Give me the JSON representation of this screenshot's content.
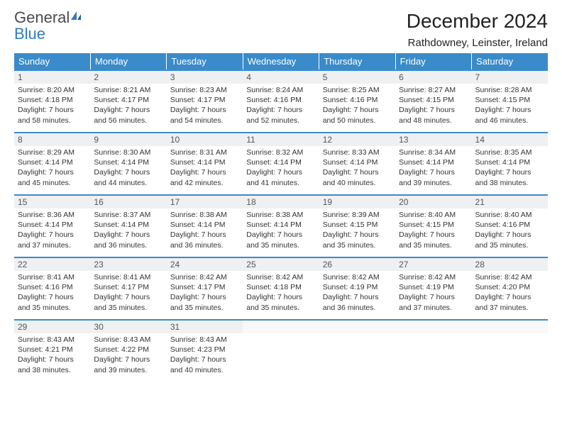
{
  "brand": {
    "general": "General",
    "blue": "Blue"
  },
  "header": {
    "title": "December 2024",
    "location": "Rathdowney, Leinster, Ireland"
  },
  "colors": {
    "header_bg": "#3a8bc9",
    "header_text": "#ffffff",
    "daynum_bg": "#eef0f2",
    "row_border": "#3a8bc9",
    "text": "#333333",
    "logo_blue": "#2f7bbf"
  },
  "weekdays": [
    "Sunday",
    "Monday",
    "Tuesday",
    "Wednesday",
    "Thursday",
    "Friday",
    "Saturday"
  ],
  "weeks": [
    [
      {
        "d": "1",
        "sunrise": "Sunrise: 8:20 AM",
        "sunset": "Sunset: 4:18 PM",
        "dayl": "Daylight: 7 hours and 58 minutes."
      },
      {
        "d": "2",
        "sunrise": "Sunrise: 8:21 AM",
        "sunset": "Sunset: 4:17 PM",
        "dayl": "Daylight: 7 hours and 56 minutes."
      },
      {
        "d": "3",
        "sunrise": "Sunrise: 8:23 AM",
        "sunset": "Sunset: 4:17 PM",
        "dayl": "Daylight: 7 hours and 54 minutes."
      },
      {
        "d": "4",
        "sunrise": "Sunrise: 8:24 AM",
        "sunset": "Sunset: 4:16 PM",
        "dayl": "Daylight: 7 hours and 52 minutes."
      },
      {
        "d": "5",
        "sunrise": "Sunrise: 8:25 AM",
        "sunset": "Sunset: 4:16 PM",
        "dayl": "Daylight: 7 hours and 50 minutes."
      },
      {
        "d": "6",
        "sunrise": "Sunrise: 8:27 AM",
        "sunset": "Sunset: 4:15 PM",
        "dayl": "Daylight: 7 hours and 48 minutes."
      },
      {
        "d": "7",
        "sunrise": "Sunrise: 8:28 AM",
        "sunset": "Sunset: 4:15 PM",
        "dayl": "Daylight: 7 hours and 46 minutes."
      }
    ],
    [
      {
        "d": "8",
        "sunrise": "Sunrise: 8:29 AM",
        "sunset": "Sunset: 4:14 PM",
        "dayl": "Daylight: 7 hours and 45 minutes."
      },
      {
        "d": "9",
        "sunrise": "Sunrise: 8:30 AM",
        "sunset": "Sunset: 4:14 PM",
        "dayl": "Daylight: 7 hours and 44 minutes."
      },
      {
        "d": "10",
        "sunrise": "Sunrise: 8:31 AM",
        "sunset": "Sunset: 4:14 PM",
        "dayl": "Daylight: 7 hours and 42 minutes."
      },
      {
        "d": "11",
        "sunrise": "Sunrise: 8:32 AM",
        "sunset": "Sunset: 4:14 PM",
        "dayl": "Daylight: 7 hours and 41 minutes."
      },
      {
        "d": "12",
        "sunrise": "Sunrise: 8:33 AM",
        "sunset": "Sunset: 4:14 PM",
        "dayl": "Daylight: 7 hours and 40 minutes."
      },
      {
        "d": "13",
        "sunrise": "Sunrise: 8:34 AM",
        "sunset": "Sunset: 4:14 PM",
        "dayl": "Daylight: 7 hours and 39 minutes."
      },
      {
        "d": "14",
        "sunrise": "Sunrise: 8:35 AM",
        "sunset": "Sunset: 4:14 PM",
        "dayl": "Daylight: 7 hours and 38 minutes."
      }
    ],
    [
      {
        "d": "15",
        "sunrise": "Sunrise: 8:36 AM",
        "sunset": "Sunset: 4:14 PM",
        "dayl": "Daylight: 7 hours and 37 minutes."
      },
      {
        "d": "16",
        "sunrise": "Sunrise: 8:37 AM",
        "sunset": "Sunset: 4:14 PM",
        "dayl": "Daylight: 7 hours and 36 minutes."
      },
      {
        "d": "17",
        "sunrise": "Sunrise: 8:38 AM",
        "sunset": "Sunset: 4:14 PM",
        "dayl": "Daylight: 7 hours and 36 minutes."
      },
      {
        "d": "18",
        "sunrise": "Sunrise: 8:38 AM",
        "sunset": "Sunset: 4:14 PM",
        "dayl": "Daylight: 7 hours and 35 minutes."
      },
      {
        "d": "19",
        "sunrise": "Sunrise: 8:39 AM",
        "sunset": "Sunset: 4:15 PM",
        "dayl": "Daylight: 7 hours and 35 minutes."
      },
      {
        "d": "20",
        "sunrise": "Sunrise: 8:40 AM",
        "sunset": "Sunset: 4:15 PM",
        "dayl": "Daylight: 7 hours and 35 minutes."
      },
      {
        "d": "21",
        "sunrise": "Sunrise: 8:40 AM",
        "sunset": "Sunset: 4:16 PM",
        "dayl": "Daylight: 7 hours and 35 minutes."
      }
    ],
    [
      {
        "d": "22",
        "sunrise": "Sunrise: 8:41 AM",
        "sunset": "Sunset: 4:16 PM",
        "dayl": "Daylight: 7 hours and 35 minutes."
      },
      {
        "d": "23",
        "sunrise": "Sunrise: 8:41 AM",
        "sunset": "Sunset: 4:17 PM",
        "dayl": "Daylight: 7 hours and 35 minutes."
      },
      {
        "d": "24",
        "sunrise": "Sunrise: 8:42 AM",
        "sunset": "Sunset: 4:17 PM",
        "dayl": "Daylight: 7 hours and 35 minutes."
      },
      {
        "d": "25",
        "sunrise": "Sunrise: 8:42 AM",
        "sunset": "Sunset: 4:18 PM",
        "dayl": "Daylight: 7 hours and 35 minutes."
      },
      {
        "d": "26",
        "sunrise": "Sunrise: 8:42 AM",
        "sunset": "Sunset: 4:19 PM",
        "dayl": "Daylight: 7 hours and 36 minutes."
      },
      {
        "d": "27",
        "sunrise": "Sunrise: 8:42 AM",
        "sunset": "Sunset: 4:19 PM",
        "dayl": "Daylight: 7 hours and 37 minutes."
      },
      {
        "d": "28",
        "sunrise": "Sunrise: 8:42 AM",
        "sunset": "Sunset: 4:20 PM",
        "dayl": "Daylight: 7 hours and 37 minutes."
      }
    ],
    [
      {
        "d": "29",
        "sunrise": "Sunrise: 8:43 AM",
        "sunset": "Sunset: 4:21 PM",
        "dayl": "Daylight: 7 hours and 38 minutes."
      },
      {
        "d": "30",
        "sunrise": "Sunrise: 8:43 AM",
        "sunset": "Sunset: 4:22 PM",
        "dayl": "Daylight: 7 hours and 39 minutes."
      },
      {
        "d": "31",
        "sunrise": "Sunrise: 8:43 AM",
        "sunset": "Sunset: 4:23 PM",
        "dayl": "Daylight: 7 hours and 40 minutes."
      },
      {
        "d": "",
        "sunrise": "",
        "sunset": "",
        "dayl": ""
      },
      {
        "d": "",
        "sunrise": "",
        "sunset": "",
        "dayl": ""
      },
      {
        "d": "",
        "sunrise": "",
        "sunset": "",
        "dayl": ""
      },
      {
        "d": "",
        "sunrise": "",
        "sunset": "",
        "dayl": ""
      }
    ]
  ]
}
